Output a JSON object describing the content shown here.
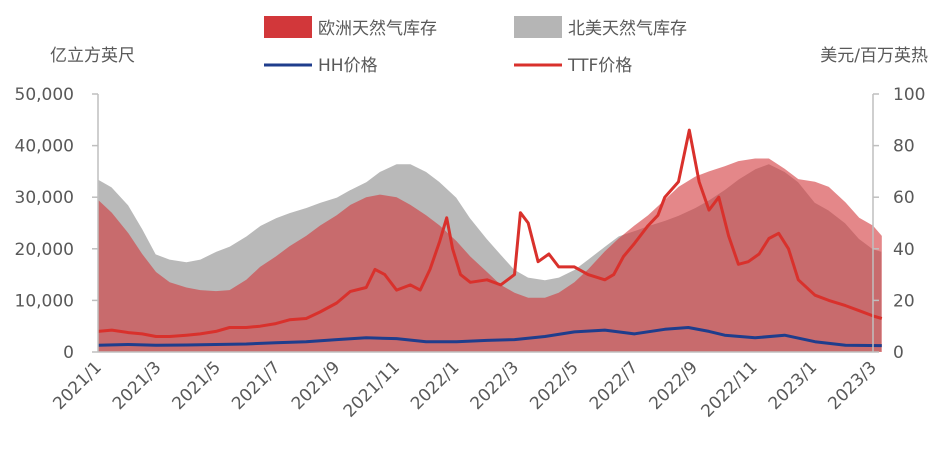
{
  "chart_data": {
    "type": "area",
    "left_unit": "亿立方英尺",
    "right_unit": "美元/百万英热",
    "legend": [
      "欧洲天然气库存",
      "北美天然气库存",
      "HH价格",
      "TTF价格"
    ],
    "colors": {
      "europe_area": "#d2373a",
      "na_area": "#b5b5b5",
      "hh_line": "#1f3d8c",
      "ttf_line": "#d9312c",
      "axis": "#bfbfbf"
    },
    "y_left": {
      "min": 0,
      "max": 50000,
      "ticks": [
        "0",
        "10,000",
        "20,000",
        "30,000",
        "40,000",
        "50,000"
      ]
    },
    "y_right": {
      "min": 0,
      "max": 100,
      "ticks": [
        "0",
        "20",
        "40",
        "60",
        "80",
        "100"
      ]
    },
    "x_range": [
      "2021-01",
      "2023-03"
    ],
    "x_tick_labels": [
      "2021/1",
      "2021/3",
      "2021/5",
      "2021/7",
      "2021/9",
      "2021/11",
      "2022/1",
      "2022/3",
      "2022/5",
      "2022/7",
      "2022/9",
      "2022/11",
      "2023/1",
      "2023/3"
    ],
    "series": [
      {
        "name": "北美天然气库存",
        "axis": "left",
        "kind": "area",
        "points": [
          [
            "2021-01-01",
            33500
          ],
          [
            "2021-01-15",
            32000
          ],
          [
            "2021-02-01",
            28500
          ],
          [
            "2021-02-15",
            24000
          ],
          [
            "2021-03-01",
            19000
          ],
          [
            "2021-03-15",
            18000
          ],
          [
            "2021-04-01",
            17500
          ],
          [
            "2021-04-15",
            18000
          ],
          [
            "2021-05-01",
            19500
          ],
          [
            "2021-05-15",
            20500
          ],
          [
            "2021-06-01",
            22500
          ],
          [
            "2021-06-15",
            24500
          ],
          [
            "2021-07-01",
            26000
          ],
          [
            "2021-07-15",
            27000
          ],
          [
            "2021-08-01",
            28000
          ],
          [
            "2021-08-15",
            29000
          ],
          [
            "2021-09-01",
            30000
          ],
          [
            "2021-09-15",
            31500
          ],
          [
            "2021-10-01",
            33000
          ],
          [
            "2021-10-15",
            35000
          ],
          [
            "2021-11-01",
            36500
          ],
          [
            "2021-11-15",
            36500
          ],
          [
            "2021-12-01",
            35000
          ],
          [
            "2021-12-15",
            33000
          ],
          [
            "2022-01-01",
            30000
          ],
          [
            "2022-01-15",
            26000
          ],
          [
            "2022-02-01",
            22000
          ],
          [
            "2022-02-15",
            19000
          ],
          [
            "2022-03-01",
            16000
          ],
          [
            "2022-03-15",
            14500
          ],
          [
            "2022-04-01",
            14000
          ],
          [
            "2022-04-15",
            14500
          ],
          [
            "2022-05-01",
            16000
          ],
          [
            "2022-05-15",
            18000
          ],
          [
            "2022-06-01",
            20500
          ],
          [
            "2022-06-15",
            22500
          ],
          [
            "2022-07-01",
            23500
          ],
          [
            "2022-07-15",
            24500
          ],
          [
            "2022-08-01",
            25500
          ],
          [
            "2022-08-15",
            26500
          ],
          [
            "2022-09-01",
            28000
          ],
          [
            "2022-09-15",
            29500
          ],
          [
            "2022-10-01",
            31500
          ],
          [
            "2022-10-15",
            33500
          ],
          [
            "2022-11-01",
            35500
          ],
          [
            "2022-11-15",
            36500
          ],
          [
            "2022-12-01",
            35000
          ],
          [
            "2022-12-15",
            33000
          ],
          [
            "2023-01-01",
            29000
          ],
          [
            "2023-01-15",
            27500
          ],
          [
            "2023-02-01",
            25000
          ],
          [
            "2023-02-15",
            22000
          ],
          [
            "2023-03-01",
            20000
          ],
          [
            "2023-03-10",
            19500
          ]
        ]
      },
      {
        "name": "欧洲天然气库存",
        "axis": "left",
        "kind": "area",
        "points": [
          [
            "2021-01-01",
            29500
          ],
          [
            "2021-01-15",
            27000
          ],
          [
            "2021-02-01",
            23000
          ],
          [
            "2021-02-15",
            19000
          ],
          [
            "2021-03-01",
            15500
          ],
          [
            "2021-03-15",
            13500
          ],
          [
            "2021-04-01",
            12500
          ],
          [
            "2021-04-15",
            12000
          ],
          [
            "2021-05-01",
            11800
          ],
          [
            "2021-05-15",
            12000
          ],
          [
            "2021-06-01",
            14000
          ],
          [
            "2021-06-15",
            16500
          ],
          [
            "2021-07-01",
            18500
          ],
          [
            "2021-07-15",
            20500
          ],
          [
            "2021-08-01",
            22500
          ],
          [
            "2021-08-15",
            24500
          ],
          [
            "2021-09-01",
            26500
          ],
          [
            "2021-09-15",
            28500
          ],
          [
            "2021-10-01",
            30000
          ],
          [
            "2021-10-15",
            30500
          ],
          [
            "2021-11-01",
            30000
          ],
          [
            "2021-11-15",
            28500
          ],
          [
            "2021-12-01",
            26500
          ],
          [
            "2021-12-15",
            24500
          ],
          [
            "2022-01-01",
            21500
          ],
          [
            "2022-01-15",
            18500
          ],
          [
            "2022-02-01",
            15500
          ],
          [
            "2022-02-15",
            13000
          ],
          [
            "2022-03-01",
            11500
          ],
          [
            "2022-03-15",
            10500
          ],
          [
            "2022-04-01",
            10500
          ],
          [
            "2022-04-15",
            11500
          ],
          [
            "2022-05-01",
            13500
          ],
          [
            "2022-05-15",
            16000
          ],
          [
            "2022-06-01",
            19500
          ],
          [
            "2022-06-15",
            22000
          ],
          [
            "2022-07-01",
            24500
          ],
          [
            "2022-07-15",
            26500
          ],
          [
            "2022-08-01",
            29500
          ],
          [
            "2022-08-15",
            32000
          ],
          [
            "2022-09-01",
            34000
          ],
          [
            "2022-09-15",
            35000
          ],
          [
            "2022-10-01",
            36000
          ],
          [
            "2022-10-15",
            37000
          ],
          [
            "2022-11-01",
            37500
          ],
          [
            "2022-11-15",
            37500
          ],
          [
            "2022-12-01",
            35500
          ],
          [
            "2022-12-15",
            33500
          ],
          [
            "2023-01-01",
            33000
          ],
          [
            "2023-01-15",
            32000
          ],
          [
            "2023-02-01",
            29000
          ],
          [
            "2023-02-15",
            26000
          ],
          [
            "2023-03-01",
            24500
          ],
          [
            "2023-03-10",
            22500
          ]
        ]
      },
      {
        "name": "TTF价格",
        "axis": "right",
        "kind": "line",
        "points": [
          [
            "2021-01-01",
            8
          ],
          [
            "2021-01-15",
            8.5
          ],
          [
            "2021-02-01",
            7.5
          ],
          [
            "2021-02-15",
            7
          ],
          [
            "2021-03-01",
            6
          ],
          [
            "2021-03-15",
            6
          ],
          [
            "2021-04-01",
            6.5
          ],
          [
            "2021-04-15",
            7
          ],
          [
            "2021-05-01",
            8
          ],
          [
            "2021-05-15",
            9.5
          ],
          [
            "2021-06-01",
            9.5
          ],
          [
            "2021-06-15",
            10
          ],
          [
            "2021-07-01",
            11
          ],
          [
            "2021-07-15",
            12.5
          ],
          [
            "2021-08-01",
            13
          ],
          [
            "2021-08-15",
            15.5
          ],
          [
            "2021-09-01",
            19
          ],
          [
            "2021-09-15",
            23.5
          ],
          [
            "2021-10-01",
            25
          ],
          [
            "2021-10-10",
            32
          ],
          [
            "2021-10-20",
            30
          ],
          [
            "2021-11-01",
            24
          ],
          [
            "2021-11-15",
            26
          ],
          [
            "2021-11-25",
            24
          ],
          [
            "2021-12-05",
            32
          ],
          [
            "2021-12-15",
            43
          ],
          [
            "2021-12-22",
            52
          ],
          [
            "2021-12-28",
            40
          ],
          [
            "2022-01-05",
            30
          ],
          [
            "2022-01-15",
            27
          ],
          [
            "2022-02-01",
            28
          ],
          [
            "2022-02-15",
            26
          ],
          [
            "2022-03-01",
            30
          ],
          [
            "2022-03-07",
            54
          ],
          [
            "2022-03-15",
            50
          ],
          [
            "2022-03-25",
            35
          ],
          [
            "2022-04-05",
            38
          ],
          [
            "2022-04-15",
            33
          ],
          [
            "2022-05-01",
            33
          ],
          [
            "2022-05-15",
            30
          ],
          [
            "2022-06-01",
            28
          ],
          [
            "2022-06-10",
            30
          ],
          [
            "2022-06-20",
            37
          ],
          [
            "2022-07-01",
            42
          ],
          [
            "2022-07-15",
            49
          ],
          [
            "2022-07-25",
            53
          ],
          [
            "2022-08-01",
            60
          ],
          [
            "2022-08-15",
            66
          ],
          [
            "2022-08-26",
            86
          ],
          [
            "2022-09-05",
            66
          ],
          [
            "2022-09-15",
            55
          ],
          [
            "2022-09-25",
            60
          ],
          [
            "2022-10-05",
            45
          ],
          [
            "2022-10-15",
            34
          ],
          [
            "2022-10-25",
            35
          ],
          [
            "2022-11-05",
            38
          ],
          [
            "2022-11-15",
            44
          ],
          [
            "2022-11-25",
            46
          ],
          [
            "2022-12-05",
            40
          ],
          [
            "2022-12-15",
            28
          ],
          [
            "2023-01-01",
            22
          ],
          [
            "2023-01-15",
            20
          ],
          [
            "2023-02-01",
            18
          ],
          [
            "2023-02-15",
            16
          ],
          [
            "2023-03-01",
            14
          ],
          [
            "2023-03-10",
            13
          ]
        ]
      },
      {
        "name": "HH价格",
        "axis": "right",
        "kind": "line",
        "points": [
          [
            "2021-01-01",
            2.6
          ],
          [
            "2021-02-01",
            2.9
          ],
          [
            "2021-03-01",
            2.6
          ],
          [
            "2021-04-01",
            2.7
          ],
          [
            "2021-05-01",
            2.9
          ],
          [
            "2021-06-01",
            3.1
          ],
          [
            "2021-07-01",
            3.6
          ],
          [
            "2021-08-01",
            4
          ],
          [
            "2021-09-01",
            4.8
          ],
          [
            "2021-10-01",
            5.5
          ],
          [
            "2021-11-01",
            5.2
          ],
          [
            "2021-12-01",
            4
          ],
          [
            "2022-01-01",
            4
          ],
          [
            "2022-02-01",
            4.5
          ],
          [
            "2022-03-01",
            4.8
          ],
          [
            "2022-04-01",
            6
          ],
          [
            "2022-05-01",
            7.8
          ],
          [
            "2022-06-01",
            8.5
          ],
          [
            "2022-07-01",
            7
          ],
          [
            "2022-08-01",
            8.8
          ],
          [
            "2022-08-25",
            9.5
          ],
          [
            "2022-09-15",
            8
          ],
          [
            "2022-10-01",
            6.5
          ],
          [
            "2022-11-01",
            5.5
          ],
          [
            "2022-12-01",
            6.5
          ],
          [
            "2023-01-01",
            4
          ],
          [
            "2023-02-01",
            2.6
          ],
          [
            "2023-03-10",
            2.5
          ]
        ]
      }
    ]
  }
}
